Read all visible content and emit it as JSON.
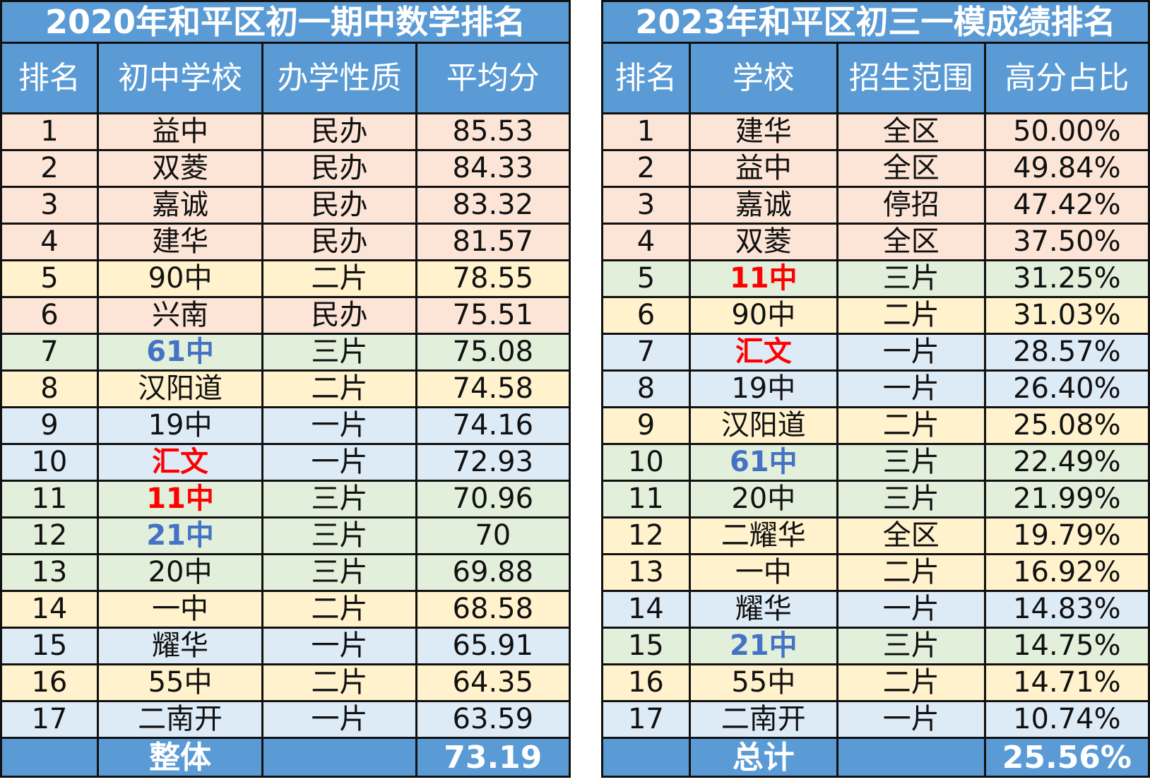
{
  "colors": {
    "header": "#5b9bd5",
    "peach": "#fce4d6",
    "yellow": "#fff2cc",
    "green": "#e2efda",
    "blue": "#ddebf7",
    "red_text": "#ff0000",
    "blue_text": "#4472c4"
  },
  "tables": [
    {
      "title": "2020年和平区初一期中数学排名",
      "headers": [
        "排名",
        "初中学校",
        "办学性质",
        "平均分"
      ],
      "rows": [
        {
          "cells": [
            "1",
            "益中",
            "民办",
            "85.53"
          ],
          "color": "peach"
        },
        {
          "cells": [
            "2",
            "双菱",
            "民办",
            "84.33"
          ],
          "color": "peach"
        },
        {
          "cells": [
            "3",
            "嘉诚",
            "民办",
            "83.32"
          ],
          "color": "peach"
        },
        {
          "cells": [
            "4",
            "建华",
            "民办",
            "81.57"
          ],
          "color": "peach"
        },
        {
          "cells": [
            "5",
            "90中",
            "二片",
            "78.55"
          ],
          "color": "yellow"
        },
        {
          "cells": [
            "6",
            "兴南",
            "民办",
            "75.51"
          ],
          "color": "peach"
        },
        {
          "cells": [
            "7",
            "61中",
            "三片",
            "75.08"
          ],
          "color": "green",
          "highlight": "blue"
        },
        {
          "cells": [
            "8",
            "汉阳道",
            "二片",
            "74.58"
          ],
          "color": "yellow"
        },
        {
          "cells": [
            "9",
            "19中",
            "一片",
            "74.16"
          ],
          "color": "blue"
        },
        {
          "cells": [
            "10",
            "汇文",
            "一片",
            "72.93"
          ],
          "color": "blue",
          "highlight": "red"
        },
        {
          "cells": [
            "11",
            "11中",
            "三片",
            "70.96"
          ],
          "color": "green",
          "highlight": "red"
        },
        {
          "cells": [
            "12",
            "21中",
            "三片",
            "70"
          ],
          "color": "green",
          "highlight": "blue"
        },
        {
          "cells": [
            "13",
            "20中",
            "三片",
            "69.88"
          ],
          "color": "green"
        },
        {
          "cells": [
            "14",
            "一中",
            "二片",
            "68.58"
          ],
          "color": "yellow"
        },
        {
          "cells": [
            "15",
            "耀华",
            "一片",
            "65.91"
          ],
          "color": "blue"
        },
        {
          "cells": [
            "16",
            "55中",
            "二片",
            "64.35"
          ],
          "color": "yellow"
        },
        {
          "cells": [
            "17",
            "二南开",
            "一片",
            "63.59"
          ],
          "color": "blue"
        }
      ],
      "footer": [
        "",
        "整体",
        "",
        "73.19"
      ]
    },
    {
      "title": "2023年和平区初三一模成绩排名",
      "headers": [
        "排名",
        "学校",
        "招生范围",
        "高分占比"
      ],
      "rows": [
        {
          "cells": [
            "1",
            "建华",
            "全区",
            "50.00%"
          ],
          "color": "peach"
        },
        {
          "cells": [
            "2",
            "益中",
            "全区",
            "49.84%"
          ],
          "color": "peach"
        },
        {
          "cells": [
            "3",
            "嘉诚",
            "停招",
            "47.42%"
          ],
          "color": "peach"
        },
        {
          "cells": [
            "4",
            "双菱",
            "全区",
            "37.50%"
          ],
          "color": "peach"
        },
        {
          "cells": [
            "5",
            "11中",
            "三片",
            "31.25%"
          ],
          "color": "green",
          "highlight": "red"
        },
        {
          "cells": [
            "6",
            "90中",
            "二片",
            "31.03%"
          ],
          "color": "yellow"
        },
        {
          "cells": [
            "7",
            "汇文",
            "一片",
            "28.57%"
          ],
          "color": "blue",
          "highlight": "red"
        },
        {
          "cells": [
            "8",
            "19中",
            "一片",
            "26.40%"
          ],
          "color": "blue"
        },
        {
          "cells": [
            "9",
            "汉阳道",
            "二片",
            "25.08%"
          ],
          "color": "yellow"
        },
        {
          "cells": [
            "10",
            "61中",
            "三片",
            "22.49%"
          ],
          "color": "green",
          "highlight": "blue"
        },
        {
          "cells": [
            "11",
            "20中",
            "三片",
            "21.99%"
          ],
          "color": "green"
        },
        {
          "cells": [
            "12",
            "二耀华",
            "全区",
            "19.79%"
          ],
          "color": "yellow"
        },
        {
          "cells": [
            "13",
            "一中",
            "二片",
            "16.92%"
          ],
          "color": "yellow"
        },
        {
          "cells": [
            "14",
            "耀华",
            "一片",
            "14.83%"
          ],
          "color": "blue"
        },
        {
          "cells": [
            "15",
            "21中",
            "三片",
            "14.75%"
          ],
          "color": "green",
          "highlight": "blue"
        },
        {
          "cells": [
            "16",
            "55中",
            "二片",
            "14.71%"
          ],
          "color": "yellow"
        },
        {
          "cells": [
            "17",
            "二南开",
            "一片",
            "10.74%"
          ],
          "color": "blue"
        }
      ],
      "footer": [
        "",
        "总计",
        "",
        "25.56%"
      ]
    }
  ]
}
